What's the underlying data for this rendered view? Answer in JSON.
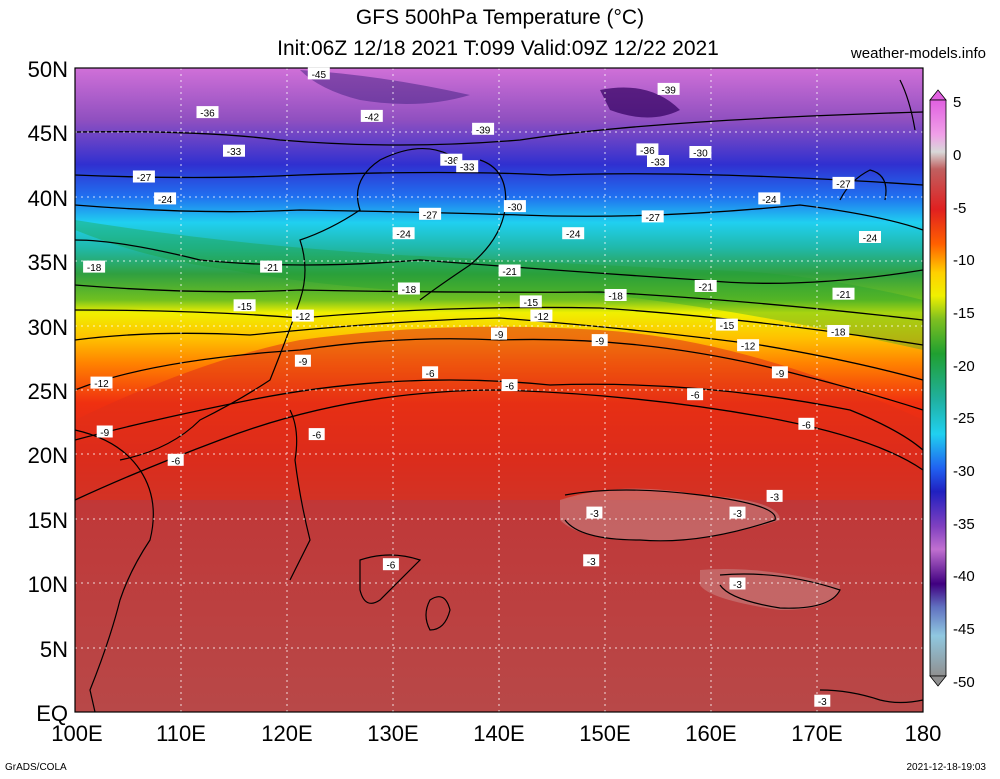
{
  "title_line1": "GFS 500hPa Temperature (°C)",
  "title_line2": "Init:06Z 12/18 2021 T:099 Valid:09Z 12/22 2021",
  "site": "weather-models.info",
  "footer_left": "GrADS/COLA",
  "footer_right": "2021-12-18-19:03",
  "lat_labels": [
    "50N",
    "45N",
    "40N",
    "35N",
    "30N",
    "25N",
    "20N",
    "15N",
    "10N",
    "5N",
    "EQ"
  ],
  "lon_labels": [
    "100E",
    "110E",
    "120E",
    "130E",
    "140E",
    "150E",
    "160E",
    "170E",
    "180"
  ],
  "colorbar_labels": [
    "5",
    "0",
    "-5",
    "-10",
    "-15",
    "-20",
    "-25",
    "-30",
    "-35",
    "-40",
    "-45",
    "-50"
  ],
  "colors": {
    "tropics": "#b84848",
    "warm_red": "#e02020",
    "orange": "#ff8000",
    "yellow": "#ffe000",
    "green": "#20a030",
    "teal": "#20b0a0",
    "cyan": "#20d8f0",
    "blue": "#2040e0",
    "purple": "#8030c0",
    "magenta": "#d060d8"
  },
  "contour_labels": [
    {
      "text": "-45",
      "lon": 123,
      "lat": 49.5
    },
    {
      "text": "-36",
      "lon": 112.5,
      "lat": 46.5
    },
    {
      "text": "-42",
      "lon": 128,
      "lat": 46.2
    },
    {
      "text": "-39",
      "lon": 138.5,
      "lat": 45.2
    },
    {
      "text": "-39",
      "lon": 156,
      "lat": 48.3
    },
    {
      "text": "-33",
      "lon": 115,
      "lat": 43.5
    },
    {
      "text": "-36",
      "lon": 135.5,
      "lat": 42.8
    },
    {
      "text": "-33",
      "lon": 137,
      "lat": 42.3
    },
    {
      "text": "-36",
      "lon": 154,
      "lat": 43.6
    },
    {
      "text": "-33",
      "lon": 155,
      "lat": 42.7
    },
    {
      "text": "-30",
      "lon": 159,
      "lat": 43.4
    },
    {
      "text": "-27",
      "lon": 106.5,
      "lat": 41.5
    },
    {
      "text": "-24",
      "lon": 108.5,
      "lat": 39.8
    },
    {
      "text": "-27",
      "lon": 133.5,
      "lat": 38.6
    },
    {
      "text": "-30",
      "lon": 141.5,
      "lat": 39.2
    },
    {
      "text": "-27",
      "lon": 154.5,
      "lat": 38.4
    },
    {
      "text": "-24",
      "lon": 165.5,
      "lat": 39.8
    },
    {
      "text": "-27",
      "lon": 172.5,
      "lat": 41.0
    },
    {
      "text": "-24",
      "lon": 131,
      "lat": 37.1
    },
    {
      "text": "-24",
      "lon": 147,
      "lat": 37.1
    },
    {
      "text": "-24",
      "lon": 175,
      "lat": 36.8
    },
    {
      "text": "-18",
      "lon": 101.8,
      "lat": 34.5
    },
    {
      "text": "-21",
      "lon": 118.5,
      "lat": 34.5
    },
    {
      "text": "-21",
      "lon": 141,
      "lat": 34.2
    },
    {
      "text": "-21",
      "lon": 159.5,
      "lat": 33.0
    },
    {
      "text": "-21",
      "lon": 172.5,
      "lat": 32.4
    },
    {
      "text": "-18",
      "lon": 131.5,
      "lat": 32.8
    },
    {
      "text": "-18",
      "lon": 151,
      "lat": 32.3
    },
    {
      "text": "-15",
      "lon": 116,
      "lat": 31.5
    },
    {
      "text": "-15",
      "lon": 143,
      "lat": 31.8
    },
    {
      "text": "-12",
      "lon": 121.5,
      "lat": 30.7
    },
    {
      "text": "-12",
      "lon": 144,
      "lat": 30.7
    },
    {
      "text": "-15",
      "lon": 161.5,
      "lat": 30.0
    },
    {
      "text": "-18",
      "lon": 172,
      "lat": 29.5
    },
    {
      "text": "-12",
      "lon": 163.5,
      "lat": 28.4
    },
    {
      "text": "-9",
      "lon": 140,
      "lat": 29.3
    },
    {
      "text": "-9",
      "lon": 149.5,
      "lat": 28.8
    },
    {
      "text": "-9",
      "lon": 121.5,
      "lat": 27.2
    },
    {
      "text": "-6",
      "lon": 133.5,
      "lat": 26.3
    },
    {
      "text": "-12",
      "lon": 102.5,
      "lat": 25.5
    },
    {
      "text": "-9",
      "lon": 166.5,
      "lat": 26.3
    },
    {
      "text": "-6",
      "lon": 141,
      "lat": 25.3
    },
    {
      "text": "-6",
      "lon": 158.5,
      "lat": 24.6
    },
    {
      "text": "-6",
      "lon": 122.8,
      "lat": 21.5
    },
    {
      "text": "-9",
      "lon": 102.8,
      "lat": 21.7
    },
    {
      "text": "-6",
      "lon": 169,
      "lat": 22.3
    },
    {
      "text": "-6",
      "lon": 109.5,
      "lat": 19.5
    },
    {
      "text": "-3",
      "lon": 166,
      "lat": 16.7
    },
    {
      "text": "-3",
      "lon": 149,
      "lat": 15.4
    },
    {
      "text": "-3",
      "lon": 162.5,
      "lat": 15.4
    },
    {
      "text": "-3",
      "lon": 148.7,
      "lat": 11.7
    },
    {
      "text": "-6",
      "lon": 129.8,
      "lat": 11.4
    },
    {
      "text": "-3",
      "lon": 162.5,
      "lat": 9.9
    },
    {
      "text": "-3",
      "lon": 170.5,
      "lat": 0.8
    }
  ]
}
